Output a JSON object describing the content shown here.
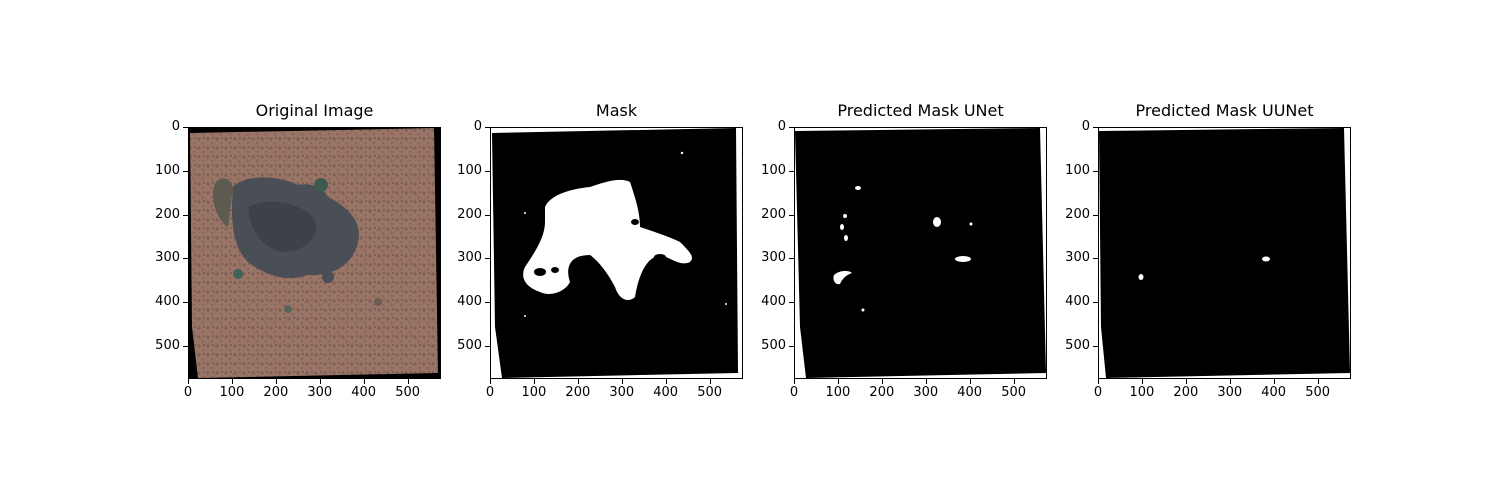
{
  "panels": [
    {
      "title": "Original Image",
      "type": "satellite"
    },
    {
      "title": "Mask",
      "type": "mask"
    },
    {
      "title": "Predicted Mask UNet",
      "type": "pred_unet"
    },
    {
      "title": "Predicted Mask UUNet",
      "type": "pred_uunet"
    }
  ],
  "axes": {
    "y_ticks": [
      "0",
      "100",
      "200",
      "300",
      "400",
      "500"
    ],
    "x_ticks": [
      "0",
      "100",
      "200",
      "300",
      "400",
      "500"
    ],
    "extent": [
      0,
      576
    ]
  }
}
